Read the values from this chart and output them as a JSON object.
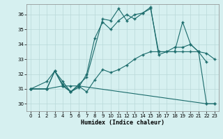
{
  "xlabel": "Humidex (Indice chaleur)",
  "bg_color": "#d6f0f0",
  "line_color": "#1a6b6b",
  "grid_color": "#b8d8d8",
  "xlim": [
    -0.5,
    23.5
  ],
  "ylim": [
    29.5,
    36.7
  ],
  "yticks": [
    30,
    31,
    32,
    33,
    34,
    35,
    36
  ],
  "xticks": [
    0,
    1,
    2,
    3,
    4,
    5,
    6,
    7,
    8,
    9,
    10,
    11,
    12,
    13,
    14,
    15,
    16,
    17,
    18,
    19,
    20,
    21,
    22,
    23
  ],
  "lines": [
    {
      "x": [
        0,
        2,
        3,
        4,
        5,
        6,
        7,
        8,
        9,
        10,
        11,
        12,
        13,
        14,
        15,
        16,
        18,
        19,
        20,
        21,
        22
      ],
      "y": [
        31.0,
        31.5,
        32.2,
        31.2,
        30.8,
        31.1,
        32.0,
        34.4,
        35.5,
        35.0,
        35.6,
        36.0,
        35.7,
        36.1,
        36.4,
        33.5,
        33.5,
        35.5,
        34.0,
        33.5,
        32.8
      ]
    },
    {
      "x": [
        0,
        2,
        3,
        4,
        5,
        6,
        7,
        8,
        9,
        10,
        11,
        12,
        13,
        14,
        15,
        16,
        17,
        18,
        19,
        20,
        21,
        22,
        23
      ],
      "y": [
        31.0,
        31.0,
        32.2,
        31.3,
        30.8,
        31.2,
        30.8,
        31.6,
        32.3,
        32.1,
        32.3,
        32.6,
        33.0,
        33.3,
        33.5,
        33.5,
        33.5,
        33.5,
        33.5,
        33.5,
        33.5,
        33.4,
        33.0
      ]
    },
    {
      "x": [
        0,
        2,
        4,
        5,
        6,
        22,
        23
      ],
      "y": [
        31.0,
        31.0,
        31.2,
        31.2,
        31.2,
        30.0,
        30.0
      ]
    },
    {
      "x": [
        0,
        2,
        3,
        4,
        5,
        6,
        7,
        9,
        10,
        11,
        12,
        13,
        14,
        15,
        16,
        17,
        18,
        19,
        20,
        21,
        22,
        23
      ],
      "y": [
        31.0,
        31.0,
        32.2,
        31.5,
        30.8,
        31.3,
        31.8,
        35.7,
        35.6,
        36.4,
        35.6,
        36.0,
        36.1,
        36.5,
        33.3,
        33.5,
        33.8,
        33.8,
        34.0,
        33.5,
        30.0,
        30.0
      ]
    }
  ]
}
